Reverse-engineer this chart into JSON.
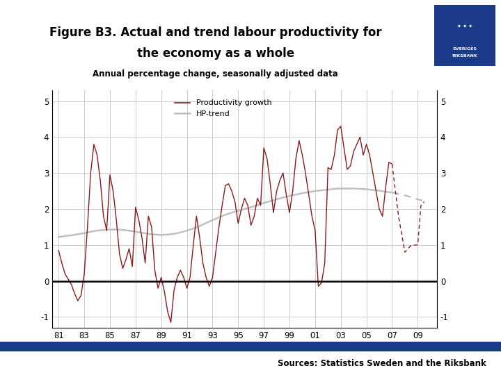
{
  "title_line1": "Figure B3. Actual and trend labour productivity for",
  "title_line2": "the economy as a whole",
  "subtitle": "Annual percentage change, seasonally adjusted data",
  "source": "Sources: Statistics Sweden and the Riksbank",
  "prod_color": "#8B1A1A",
  "trend_color": "#C0C0C0",
  "bg_color": "#FFFFFF",
  "footer_color": "#1a3a8a",
  "ylim": [
    -1.3,
    5.3
  ],
  "yticks": [
    -1,
    0,
    1,
    2,
    3,
    4,
    5
  ],
  "xtick_labels": [
    "81",
    "83",
    "85",
    "87",
    "89",
    "91",
    "93",
    "95",
    "97",
    "99",
    "01",
    "03",
    "05",
    "07",
    "09"
  ],
  "xtick_positions": [
    1981,
    1983,
    1985,
    1987,
    1989,
    1991,
    1993,
    1995,
    1997,
    1999,
    2001,
    2003,
    2005,
    2007,
    2009
  ],
  "prod_x": [
    1981.0,
    1981.25,
    1981.5,
    1981.75,
    1982.0,
    1982.25,
    1982.5,
    1982.75,
    1983.0,
    1983.25,
    1983.5,
    1983.75,
    1984.0,
    1984.25,
    1984.5,
    1984.75,
    1985.0,
    1985.25,
    1985.5,
    1985.75,
    1986.0,
    1986.25,
    1986.5,
    1986.75,
    1987.0,
    1987.25,
    1987.5,
    1987.75,
    1988.0,
    1988.25,
    1988.5,
    1988.75,
    1989.0,
    1989.25,
    1989.5,
    1989.75,
    1990.0,
    1990.25,
    1990.5,
    1990.75,
    1991.0,
    1991.25,
    1991.5,
    1991.75,
    1992.0,
    1992.25,
    1992.5,
    1992.75,
    1993.0,
    1993.25,
    1993.5,
    1993.75,
    1994.0,
    1994.25,
    1994.5,
    1994.75,
    1995.0,
    1995.25,
    1995.5,
    1995.75,
    1996.0,
    1996.25,
    1996.5,
    1996.75,
    1997.0,
    1997.25,
    1997.5,
    1997.75,
    1998.0,
    1998.25,
    1998.5,
    1998.75,
    1999.0,
    1999.25,
    1999.5,
    1999.75,
    2000.0,
    2000.25,
    2000.5,
    2000.75,
    2001.0,
    2001.25,
    2001.5,
    2001.75,
    2002.0,
    2002.25,
    2002.5,
    2002.75,
    2003.0,
    2003.25,
    2003.5,
    2003.75,
    2004.0,
    2004.25,
    2004.5,
    2004.75,
    2005.0,
    2005.25,
    2005.5,
    2005.75,
    2006.0,
    2006.25,
    2006.5,
    2006.75,
    2007.0
  ],
  "prod_y": [
    0.85,
    0.5,
    0.2,
    0.05,
    -0.1,
    -0.35,
    -0.55,
    -0.4,
    0.2,
    1.5,
    3.0,
    3.8,
    3.5,
    2.8,
    1.8,
    1.4,
    2.95,
    2.5,
    1.7,
    0.75,
    0.35,
    0.6,
    0.9,
    0.4,
    2.05,
    1.7,
    1.2,
    0.5,
    1.8,
    1.5,
    0.3,
    -0.2,
    0.1,
    -0.3,
    -0.85,
    -1.15,
    -0.25,
    0.1,
    0.3,
    0.1,
    -0.2,
    0.1,
    1.0,
    1.8,
    1.2,
    0.5,
    0.1,
    -0.15,
    0.1,
    0.8,
    1.5,
    2.1,
    2.65,
    2.7,
    2.5,
    2.2,
    1.6,
    2.0,
    2.3,
    2.1,
    1.55,
    1.8,
    2.3,
    2.1,
    3.7,
    3.4,
    2.7,
    1.9,
    2.5,
    2.8,
    3.0,
    2.4,
    1.9,
    2.5,
    3.4,
    3.9,
    3.5,
    3.0,
    2.4,
    1.8,
    1.4,
    -0.15,
    -0.05,
    0.5,
    3.15,
    3.1,
    3.5,
    4.2,
    4.3,
    3.7,
    3.1,
    3.2,
    3.6,
    3.8,
    4.0,
    3.5,
    3.8,
    3.5,
    3.0,
    2.5,
    2.0,
    1.8,
    2.6,
    3.3,
    3.25
  ],
  "dashed_prod_x": [
    2007.0,
    2007.5,
    2008.0,
    2008.5,
    2009.0,
    2009.25,
    2009.5
  ],
  "dashed_prod_y": [
    3.25,
    1.8,
    0.8,
    1.0,
    1.0,
    2.1,
    2.2
  ],
  "trend_x": [
    1981.0,
    1981.5,
    1982.0,
    1982.5,
    1983.0,
    1983.5,
    1984.0,
    1984.5,
    1985.0,
    1985.5,
    1986.0,
    1986.5,
    1987.0,
    1987.5,
    1988.0,
    1988.5,
    1989.0,
    1989.5,
    1990.0,
    1990.5,
    1991.0,
    1991.5,
    1992.0,
    1992.5,
    1993.0,
    1993.5,
    1994.0,
    1994.5,
    1995.0,
    1995.5,
    1996.0,
    1996.5,
    1997.0,
    1997.5,
    1998.0,
    1998.5,
    1999.0,
    1999.5,
    2000.0,
    2000.5,
    2001.0,
    2001.5,
    2002.0,
    2002.5,
    2003.0,
    2003.5,
    2004.0,
    2004.5,
    2005.0,
    2005.5,
    2006.0,
    2006.5,
    2007.0
  ],
  "trend_y": [
    1.22,
    1.25,
    1.27,
    1.3,
    1.33,
    1.37,
    1.4,
    1.42,
    1.43,
    1.43,
    1.42,
    1.4,
    1.37,
    1.34,
    1.31,
    1.29,
    1.28,
    1.29,
    1.31,
    1.35,
    1.4,
    1.46,
    1.53,
    1.61,
    1.69,
    1.77,
    1.84,
    1.9,
    1.95,
    2.0,
    2.05,
    2.11,
    2.17,
    2.22,
    2.27,
    2.32,
    2.36,
    2.4,
    2.44,
    2.47,
    2.5,
    2.52,
    2.54,
    2.56,
    2.57,
    2.57,
    2.57,
    2.56,
    2.55,
    2.53,
    2.51,
    2.48,
    2.46
  ],
  "dashed_trend_x": [
    2007.0,
    2007.5,
    2008.0,
    2008.5,
    2009.0,
    2009.5
  ],
  "dashed_trend_y": [
    2.46,
    2.42,
    2.38,
    2.33,
    2.27,
    2.22
  ]
}
